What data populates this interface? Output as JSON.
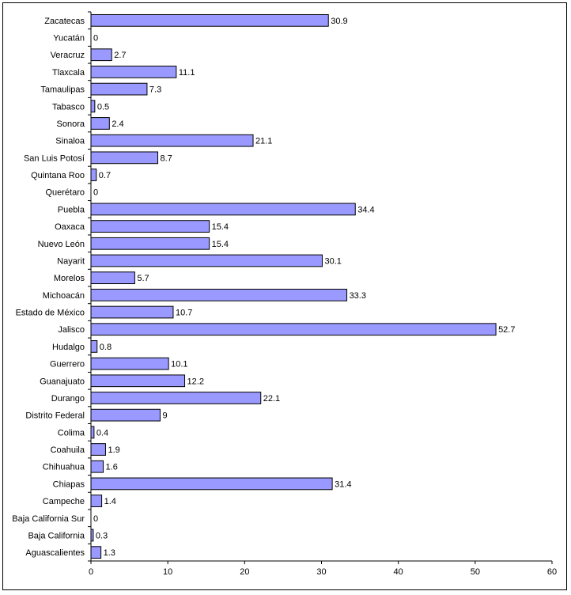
{
  "chart_data": {
    "type": "bar",
    "orientation": "horizontal",
    "title": "",
    "xlabel": "",
    "ylabel": "",
    "xlim": [
      0,
      60
    ],
    "x_ticks": [
      "0",
      "10",
      "20",
      "30",
      "40",
      "50",
      "60"
    ],
    "grid": false,
    "legend": "none",
    "bar_color": "#9999FF",
    "bar_border_color": "#000000",
    "categories": [
      "Zacatecas",
      "Yucatán",
      "Veracruz",
      "Tlaxcala",
      "Tamaulipas",
      "Tabasco",
      "Sonora",
      "Sinaloa",
      "San Luis Potosí",
      "Quintana Roo",
      "Querétaro",
      "Puebla",
      "Oaxaca",
      "Nuevo León",
      "Nayarit",
      "Morelos",
      "Michoacán",
      "Estado de México",
      "Jalisco",
      "Hudalgo",
      "Guerrero",
      "Guanajuato",
      "Durango",
      "Distrito Federal",
      "Colima",
      "Coahuila",
      "Chihuahua",
      "Chiapas",
      "Campeche",
      "Baja California Sur",
      "Baja California",
      "Aguascalientes"
    ],
    "values": [
      30.9,
      0,
      2.7,
      11.1,
      7.3,
      0.5,
      2.4,
      21.1,
      8.7,
      0.7,
      0,
      34.4,
      15.4,
      15.4,
      30.1,
      5.7,
      33.3,
      10.7,
      52.7,
      0.8,
      10.1,
      12.2,
      22.1,
      9,
      0.4,
      1.9,
      1.6,
      31.4,
      1.4,
      0,
      0.3,
      1.3
    ],
    "data_labels": [
      "30.9",
      "0",
      "2.7",
      "11.1",
      "7.3",
      "0.5",
      "2.4",
      "21.1",
      "8.7",
      "0.7",
      "0",
      "34.4",
      "15.4",
      "15.4",
      "30.1",
      "5.7",
      "33.3",
      "10.7",
      "52.7",
      "0.8",
      "10.1",
      "12.2",
      "22.1",
      "9",
      "0.4",
      "1.9",
      "1.6",
      "31.4",
      "1.4",
      "0",
      "0.3",
      "1.3"
    ]
  }
}
